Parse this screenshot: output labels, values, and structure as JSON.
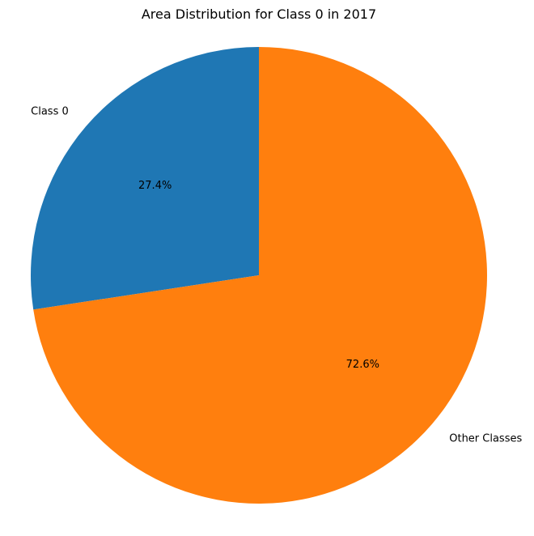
{
  "chart_data": {
    "type": "pie",
    "title": "Area Distribution for Class 0 in 2017",
    "slices": [
      {
        "label": "Class 0",
        "value": 27.4,
        "pct_label": "27.4%",
        "color": "#1f77b4"
      },
      {
        "label": "Other Classes",
        "value": 72.6,
        "pct_label": "72.6%",
        "color": "#ff7f0e"
      }
    ],
    "start_angle_deg": 90,
    "direction": "counterclockwise",
    "legend": "none"
  }
}
